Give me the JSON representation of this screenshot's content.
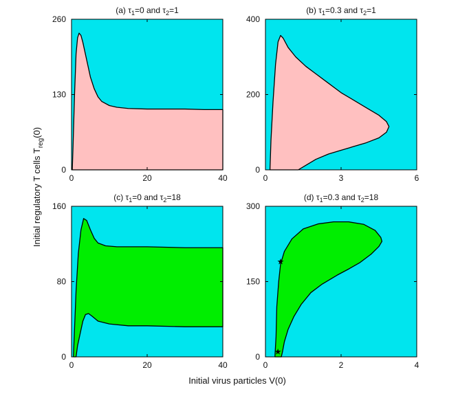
{
  "figure": {
    "xlabel": "Initial virus particles V(0)",
    "ylabel_main": "Initial regulatory T cells T",
    "ylabel_sub": "reg",
    "ylabel_tail": "(0)"
  },
  "colors": {
    "background": "#00e5ee",
    "pink": "#ffc0c0",
    "green": "#00ee00",
    "outline": "#000000"
  },
  "chart_data": [
    {
      "type": "area",
      "panel": "a",
      "title": {
        "prefix": "(a) ",
        "t1": "1",
        "v1": "=0 and ",
        "t2": "2",
        "v2": "=1"
      },
      "xlim": [
        0,
        40
      ],
      "ylim": [
        0,
        260
      ],
      "xticks": [
        0,
        20,
        40
      ],
      "yticks": [
        0,
        130,
        260
      ],
      "fill": "pink",
      "boundary": [
        [
          0.2,
          0
        ],
        [
          0.4,
          40
        ],
        [
          0.8,
          130
        ],
        [
          1.2,
          200
        ],
        [
          1.6,
          228
        ],
        [
          2,
          236
        ],
        [
          2.5,
          232
        ],
        [
          3,
          220
        ],
        [
          4,
          190
        ],
        [
          5,
          160
        ],
        [
          6,
          140
        ],
        [
          7,
          126
        ],
        [
          8,
          118
        ],
        [
          10,
          111
        ],
        [
          12,
          108
        ],
        [
          15,
          106
        ],
        [
          20,
          105
        ],
        [
          25,
          105
        ],
        [
          30,
          105
        ],
        [
          35,
          104
        ],
        [
          40,
          104
        ],
        [
          40,
          0
        ],
        [
          0.2,
          0
        ]
      ]
    },
    {
      "type": "area",
      "panel": "b",
      "title": {
        "prefix": "(b) ",
        "t1": "1",
        "v1": "=0.3 and ",
        "t2": "2",
        "v2": "=1"
      },
      "xlim": [
        0,
        6
      ],
      "ylim": [
        0,
        400
      ],
      "xticks": [
        0,
        3,
        6
      ],
      "yticks": [
        0,
        200,
        400
      ],
      "fill": "pink",
      "boundary": [
        [
          0.18,
          0
        ],
        [
          0.22,
          80
        ],
        [
          0.3,
          180
        ],
        [
          0.4,
          280
        ],
        [
          0.5,
          340
        ],
        [
          0.6,
          357
        ],
        [
          0.7,
          350
        ],
        [
          0.9,
          325
        ],
        [
          1.2,
          300
        ],
        [
          1.6,
          275
        ],
        [
          2,
          255
        ],
        [
          2.5,
          230
        ],
        [
          3,
          205
        ],
        [
          3.5,
          185
        ],
        [
          4,
          165
        ],
        [
          4.5,
          145
        ],
        [
          4.8,
          128
        ],
        [
          4.9,
          115
        ],
        [
          4.8,
          100
        ],
        [
          4.5,
          85
        ],
        [
          4,
          72
        ],
        [
          3.5,
          62
        ],
        [
          3,
          52
        ],
        [
          2.5,
          42
        ],
        [
          2,
          28
        ],
        [
          1.6,
          12
        ],
        [
          1.3,
          0
        ]
      ]
    },
    {
      "type": "area",
      "panel": "c",
      "title": {
        "prefix": "(c) ",
        "t1": "1",
        "v1": "=0 and ",
        "t2": "2",
        "v2": "=18"
      },
      "xlim": [
        0,
        40
      ],
      "ylim": [
        0,
        160
      ],
      "xticks": [
        0,
        20,
        40
      ],
      "yticks": [
        0,
        80,
        160
      ],
      "fill": "green",
      "boundary": [
        [
          0.5,
          0
        ],
        [
          0.8,
          30
        ],
        [
          1.2,
          70
        ],
        [
          1.8,
          110
        ],
        [
          2.5,
          135
        ],
        [
          3.2,
          147
        ],
        [
          4,
          145
        ],
        [
          5,
          135
        ],
        [
          6,
          126
        ],
        [
          7,
          121
        ],
        [
          9,
          118
        ],
        [
          12,
          117
        ],
        [
          20,
          117
        ],
        [
          30,
          116
        ],
        [
          40,
          116
        ],
        [
          40,
          32
        ],
        [
          30,
          32
        ],
        [
          20,
          33
        ],
        [
          15,
          33
        ],
        [
          10,
          35
        ],
        [
          7,
          38
        ],
        [
          5.5,
          43
        ],
        [
          4.5,
          46
        ],
        [
          3.7,
          45
        ],
        [
          3,
          38
        ],
        [
          2.3,
          25
        ],
        [
          1.6,
          12
        ],
        [
          1.2,
          0
        ]
      ]
    },
    {
      "type": "area",
      "panel": "d",
      "title": {
        "prefix": "(d) ",
        "t1": "1",
        "v1": "=0.3 and ",
        "t2": "2",
        "v2": "=18"
      },
      "xlim": [
        0,
        4
      ],
      "ylim": [
        0,
        300
      ],
      "xticks": [
        0,
        2,
        4
      ],
      "yticks": [
        0,
        150,
        300
      ],
      "fill": "green",
      "boundary": [
        [
          0.25,
          0
        ],
        [
          0.28,
          40
        ],
        [
          0.3,
          100
        ],
        [
          0.35,
          150
        ],
        [
          0.4,
          185
        ],
        [
          0.5,
          210
        ],
        [
          0.7,
          235
        ],
        [
          1,
          255
        ],
        [
          1.4,
          265
        ],
        [
          1.8,
          269
        ],
        [
          2.2,
          269
        ],
        [
          2.6,
          264
        ],
        [
          2.9,
          252
        ],
        [
          3.05,
          238
        ],
        [
          3.08,
          230
        ],
        [
          3.0,
          220
        ],
        [
          2.8,
          205
        ],
        [
          2.5,
          188
        ],
        [
          2.2,
          175
        ],
        [
          1.9,
          163
        ],
        [
          1.5,
          145
        ],
        [
          1.2,
          128
        ],
        [
          0.95,
          105
        ],
        [
          0.75,
          80
        ],
        [
          0.6,
          55
        ],
        [
          0.5,
          30
        ],
        [
          0.45,
          10
        ],
        [
          0.42,
          0
        ]
      ],
      "markers": [
        [
          0.4,
          190
        ],
        [
          0.33,
          10
        ]
      ]
    }
  ]
}
